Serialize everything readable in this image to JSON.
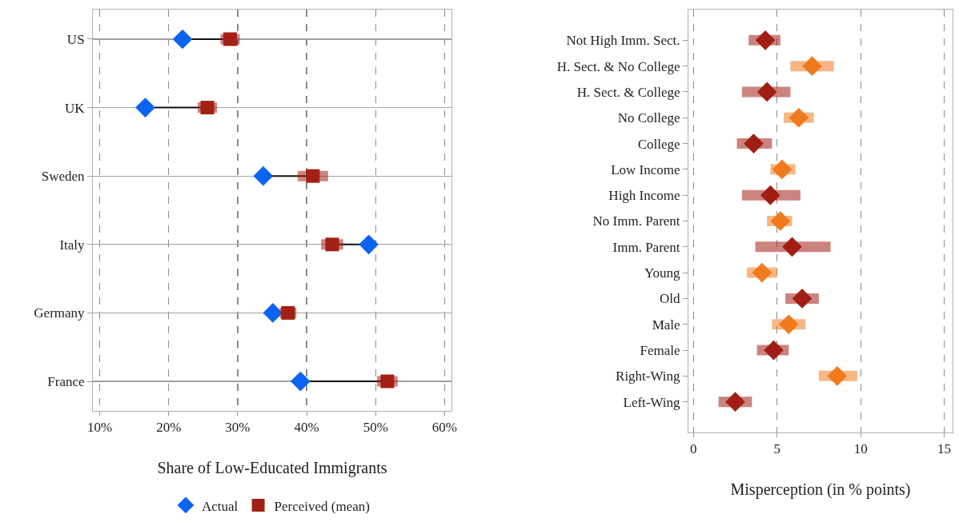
{
  "chart_data": [
    {
      "type": "scatter",
      "xlabel": "Share of Low-Educated Immigrants",
      "orientation": "horizontal",
      "categories": [
        "US",
        "UK",
        "Sweden",
        "Italy",
        "Germany",
        "France"
      ],
      "series": [
        {
          "name": "Actual",
          "color": "#0a64f0",
          "marker": "diamond",
          "values": [
            22.0,
            16.6,
            33.7,
            49.0,
            35.1,
            39.1
          ]
        },
        {
          "name": "Perceived (mean)",
          "color": "#a32015",
          "marker": "square",
          "values": [
            28.9,
            25.6,
            40.9,
            43.7,
            37.3,
            51.7
          ],
          "errors": [
            1.4,
            1.4,
            2.2,
            1.6,
            1.2,
            1.5
          ]
        }
      ],
      "xlim": [
        9,
        61
      ],
      "xticks": [
        {
          "value": 10,
          "label": "10%"
        },
        {
          "value": 20,
          "label": "20%"
        },
        {
          "value": 30,
          "label": "30%"
        },
        {
          "value": 40,
          "label": "40%"
        },
        {
          "value": 50,
          "label": "50%"
        },
        {
          "value": 60,
          "label": "60%"
        }
      ],
      "grid": true,
      "legend": "bottom"
    },
    {
      "type": "scatter",
      "xlabel": "Misperception (in % points)",
      "orientation": "horizontal",
      "marker": "diamond",
      "categories": [
        "Not High Imm. Sect.",
        "H. Sect. & No College",
        "H. Sect. & College",
        "No College",
        "College",
        "Low Income",
        "High Income",
        "No Imm. Parent",
        "Imm. Parent",
        "Young",
        "Old",
        "Male",
        "Female",
        "Right-Wing",
        "Left-Wing"
      ],
      "series": [
        {
          "color": "#f07a1e",
          "values": [
            null,
            7.1,
            null,
            6.3,
            null,
            5.3,
            null,
            5.2,
            null,
            4.1,
            null,
            5.7,
            null,
            8.6,
            null
          ],
          "errors": [
            null,
            [
              5.8,
              8.4
            ],
            null,
            [
              5.4,
              7.2
            ],
            null,
            [
              4.6,
              6.1
            ],
            null,
            [
              4.4,
              5.9
            ],
            null,
            [
              3.2,
              5.0
            ],
            null,
            [
              4.7,
              6.7
            ],
            null,
            [
              7.5,
              9.8
            ],
            null
          ]
        },
        {
          "color": "#a01e14",
          "values": [
            4.3,
            null,
            4.4,
            null,
            3.6,
            null,
            4.6,
            null,
            5.9,
            null,
            6.5,
            null,
            4.8,
            null,
            2.5
          ],
          "errors": [
            [
              3.3,
              5.2
            ],
            null,
            [
              2.9,
              5.8
            ],
            null,
            [
              2.6,
              4.7
            ],
            null,
            [
              2.9,
              6.4
            ],
            null,
            [
              3.7,
              8.2
            ],
            null,
            [
              5.5,
              7.5
            ],
            null,
            [
              3.8,
              5.7
            ],
            null,
            [
              1.5,
              3.5
            ]
          ]
        }
      ],
      "xlim": [
        -0.3,
        15.5
      ],
      "xticks": [
        0,
        5,
        10,
        15
      ],
      "grid": true,
      "legend": false
    }
  ]
}
